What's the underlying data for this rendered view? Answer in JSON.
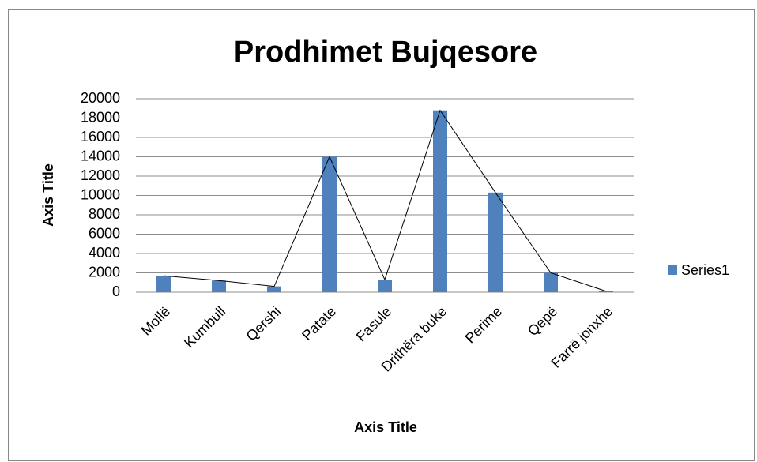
{
  "chart_data": {
    "type": "bar",
    "title": "Prodhimet Bujqesore",
    "x_label": "Axis Title",
    "y_label": "Axis Title",
    "categories": [
      "Mollë",
      "Kumbull",
      "Qershi",
      "Patate",
      "Fasule",
      "Drithëra buke",
      "Perime",
      "Qepë",
      "Farrë jonxhe"
    ],
    "series": [
      {
        "name": "Series1",
        "color": "#4f81bd",
        "values": [
          1700,
          1200,
          600,
          14000,
          1300,
          18800,
          10300,
          2000,
          100
        ]
      }
    ],
    "ylim": [
      0,
      20000
    ],
    "yticks": [
      0,
      2000,
      4000,
      6000,
      8000,
      10000,
      12000,
      14000,
      16000,
      18000,
      20000
    ],
    "grid": true,
    "legend": "right"
  }
}
